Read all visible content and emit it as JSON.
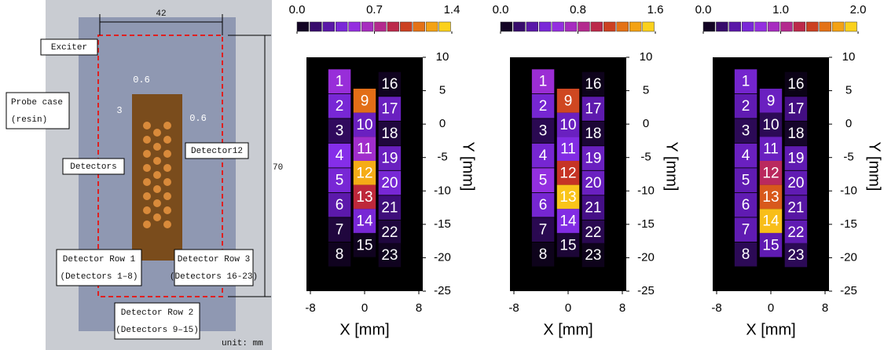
{
  "photo": {
    "width_label": "42",
    "height_label": "70",
    "exciter": "Exciter",
    "probe_case": [
      "Probe case",
      "(resin)"
    ],
    "pitch_label": "0.6",
    "spacing_label": "3",
    "gap_label": "0.6",
    "detectors": "Detectors",
    "detector12": "Detector12",
    "row1": [
      "Detector Row 1",
      "(Detectors 1–8)"
    ],
    "row2": [
      "Detector Row 2",
      "(Detectors 9–15)"
    ],
    "row3": [
      "Detector Row 3",
      "(Detectors 16-23)"
    ],
    "unit": "unit: mm"
  },
  "chart_data": [
    {
      "type": "heatmap",
      "xlabel": "X [mm]",
      "ylabel": "Y [mm]",
      "xlim": [
        -8,
        8
      ],
      "ylim": [
        -25,
        10
      ],
      "xticks": [
        -8,
        0,
        8
      ],
      "yticks": [
        10,
        5,
        0,
        -5,
        -10,
        -15,
        -20,
        -25
      ],
      "clim": [
        0,
        1.4
      ],
      "cticks": [
        {
          "value": 0,
          "label": "0.0"
        },
        0.7,
        1.4
      ],
      "colormap": [
        "#000000",
        "#4a1090",
        "#8a30f0",
        "#b02ab0",
        "#c02828",
        "#f08a10",
        "#ffe820"
      ],
      "detectors": [
        1,
        2,
        3,
        4,
        5,
        6,
        7,
        8,
        9,
        10,
        11,
        12,
        13,
        14,
        15,
        16,
        17,
        18,
        19,
        20,
        21,
        22,
        23
      ],
      "x": [
        -3.7,
        -3.7,
        -3.7,
        -3.7,
        -3.7,
        -3.7,
        -3.7,
        -3.7,
        0,
        0,
        0,
        0,
        0,
        0,
        0,
        3.7,
        3.7,
        3.7,
        3.7,
        3.7,
        3.7,
        3.7,
        3.7
      ],
      "y": [
        6.4,
        2.7,
        -1.0,
        -4.7,
        -8.4,
        -12.1,
        -15.8,
        -19.5,
        3.5,
        -0.1,
        -3.7,
        -7.3,
        -10.9,
        -14.5,
        -18.1,
        6.0,
        2.3,
        -1.4,
        -5.1,
        -8.8,
        -12.5,
        -16.2,
        -19.6
      ],
      "values": [
        0.55,
        0.4,
        0.15,
        0.45,
        0.4,
        0.3,
        0.1,
        0.05,
        1.1,
        0.35,
        0.6,
        1.25,
        0.9,
        0.4,
        0.05,
        0.05,
        0.35,
        0.1,
        0.35,
        0.4,
        0.2,
        0.1,
        0.05
      ]
    },
    {
      "type": "heatmap",
      "xlabel": "X [mm]",
      "ylabel": "Y [mm]",
      "xlim": [
        -8,
        8
      ],
      "ylim": [
        -25,
        10
      ],
      "xticks": [
        -8,
        0,
        8
      ],
      "yticks": [
        10,
        5,
        0,
        -5,
        -10,
        -15,
        -20,
        -25
      ],
      "clim": [
        0,
        1.6
      ],
      "cticks": [
        {
          "value": 0,
          "label": "0.0"
        },
        0.8,
        1.6
      ],
      "colormap": [
        "#000000",
        "#4a1090",
        "#8a30f0",
        "#b02ab0",
        "#c02828",
        "#f08a10",
        "#ffe820"
      ],
      "detectors": [
        1,
        2,
        3,
        4,
        5,
        6,
        7,
        8,
        9,
        10,
        11,
        12,
        13,
        14,
        15,
        16,
        17,
        18,
        19,
        20,
        21,
        22,
        23
      ],
      "x": [
        -3.7,
        -3.7,
        -3.7,
        -3.7,
        -3.7,
        -3.7,
        -3.7,
        -3.7,
        0,
        0,
        0,
        0,
        0,
        0,
        0,
        3.7,
        3.7,
        3.7,
        3.7,
        3.7,
        3.7,
        3.7,
        3.7
      ],
      "y": [
        6.4,
        2.7,
        -1.0,
        -4.7,
        -8.4,
        -12.1,
        -15.8,
        -19.5,
        3.5,
        -0.1,
        -3.7,
        -7.3,
        -10.9,
        -14.5,
        -18.1,
        6.0,
        2.3,
        -1.4,
        -5.1,
        -8.8,
        -12.5,
        -16.2,
        -19.6
      ],
      "values": [
        0.65,
        0.45,
        0.15,
        0.45,
        0.6,
        0.45,
        0.15,
        0.05,
        1.15,
        0.4,
        0.5,
        1.1,
        1.5,
        0.5,
        0.1,
        0.05,
        0.35,
        0.1,
        0.4,
        0.4,
        0.25,
        0.15,
        0.05
      ]
    },
    {
      "type": "heatmap",
      "xlabel": "X [mm]",
      "ylabel": "Y [mm]",
      "xlim": [
        -8,
        8
      ],
      "ylim": [
        -25,
        10
      ],
      "xticks": [
        -8,
        0,
        8
      ],
      "yticks": [
        10,
        5,
        0,
        -5,
        -10,
        -15,
        -20,
        -25
      ],
      "clim": [
        0,
        2.0
      ],
      "cticks": [
        {
          "value": 0,
          "label": "0.0"
        },
        {
          "value": 1,
          "label": "1.0"
        },
        {
          "value": 2,
          "label": "2.0"
        }
      ],
      "colormap": [
        "#000000",
        "#4a1090",
        "#8a30f0",
        "#b02ab0",
        "#c02828",
        "#f08a10",
        "#ffe820"
      ],
      "detectors": [
        1,
        2,
        3,
        4,
        5,
        6,
        7,
        8,
        9,
        10,
        11,
        12,
        13,
        14,
        15,
        16,
        17,
        18,
        19,
        20,
        21,
        22,
        23
      ],
      "x": [
        -3.7,
        -3.7,
        -3.7,
        -3.7,
        -3.7,
        -3.7,
        -3.7,
        -3.7,
        0,
        0,
        0,
        0,
        0,
        0,
        0,
        3.7,
        3.7,
        3.7,
        3.7,
        3.7,
        3.7,
        3.7,
        3.7
      ],
      "y": [
        6.4,
        2.7,
        -1.0,
        -4.7,
        -8.4,
        -12.1,
        -15.8,
        -19.5,
        3.5,
        -0.1,
        -3.7,
        -7.3,
        -10.9,
        -14.5,
        -18.1,
        6.0,
        2.3,
        -1.4,
        -5.1,
        -8.8,
        -12.5,
        -16.2,
        -19.6
      ],
      "values": [
        0.55,
        0.45,
        0.2,
        0.5,
        0.45,
        0.45,
        0.45,
        0.2,
        0.5,
        0.2,
        0.5,
        1.2,
        1.5,
        1.85,
        0.45,
        0.05,
        0.3,
        0.1,
        0.45,
        0.45,
        0.4,
        0.45,
        0.2
      ]
    }
  ]
}
